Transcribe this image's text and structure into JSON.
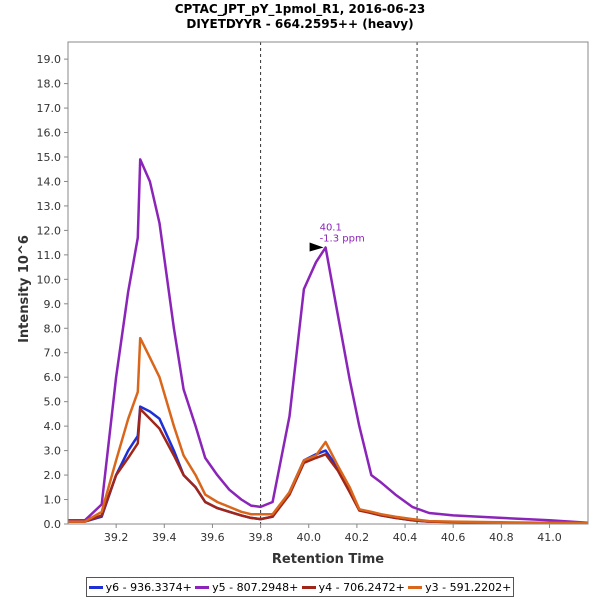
{
  "chart_data": {
    "type": "line",
    "title": "CPTAC_JPT_pY_1pmol_R1, 2016-06-23",
    "subtitle": "DIYETDYYR - 664.2595++ (heavy)",
    "xlabel": "Retention Time",
    "ylabel": "Intensity 10^6",
    "xlim": [
      39.0,
      41.16
    ],
    "ylim": [
      0,
      19.7
    ],
    "x_ticks": [
      "39.2",
      "39.4",
      "39.6",
      "39.8",
      "40.0",
      "40.2",
      "40.4",
      "40.6",
      "40.8",
      "41.0"
    ],
    "y_ticks": [
      "0.0",
      "1.0",
      "2.0",
      "3.0",
      "4.0",
      "5.0",
      "6.0",
      "7.0",
      "8.0",
      "9.0",
      "10.0",
      "11.0",
      "12.0",
      "13.0",
      "14.0",
      "15.0",
      "16.0",
      "17.0",
      "18.0",
      "19.0"
    ],
    "vlines": [
      39.8,
      40.45
    ],
    "annotation": {
      "x": 40.07,
      "y": 11.3,
      "rt_label": "40.1",
      "ppm_label": "-1.3 ppm",
      "color": "#8b24b8"
    },
    "series": [
      {
        "name": "y6 - 936.3374+",
        "color": "#1f2fd6",
        "x": [
          39.0,
          39.07,
          39.14,
          39.2,
          39.25,
          39.29,
          39.3,
          39.34,
          39.38,
          39.44,
          39.48,
          39.53,
          39.57,
          39.62,
          39.67,
          39.72,
          39.76,
          39.8,
          39.85,
          39.92,
          39.98,
          40.03,
          40.07,
          40.12,
          40.17,
          40.21,
          40.26,
          40.3,
          40.36,
          40.43,
          40.5,
          40.6,
          40.8,
          41.0,
          41.16
        ],
        "y": [
          0.1,
          0.1,
          0.3,
          2.0,
          3.0,
          3.6,
          4.8,
          4.6,
          4.3,
          3.0,
          2.0,
          1.5,
          0.9,
          0.65,
          0.5,
          0.35,
          0.25,
          0.2,
          0.3,
          1.3,
          2.6,
          2.85,
          3.0,
          2.3,
          1.4,
          0.6,
          0.45,
          0.35,
          0.25,
          0.15,
          0.1,
          0.08,
          0.05,
          0.04,
          0.03
        ]
      },
      {
        "name": "y5 - 807.2948+",
        "color": "#8b24b8",
        "x": [
          39.0,
          39.07,
          39.14,
          39.2,
          39.25,
          39.29,
          39.3,
          39.34,
          39.38,
          39.44,
          39.48,
          39.53,
          39.57,
          39.62,
          39.67,
          39.72,
          39.76,
          39.8,
          39.85,
          39.92,
          39.98,
          40.03,
          40.07,
          40.12,
          40.17,
          40.21,
          40.26,
          40.3,
          40.36,
          40.43,
          40.5,
          40.6,
          40.8,
          41.0,
          41.16
        ],
        "y": [
          0.15,
          0.15,
          0.8,
          6.0,
          9.5,
          11.7,
          14.9,
          14.0,
          12.3,
          8.0,
          5.5,
          4.0,
          2.7,
          2.0,
          1.4,
          1.0,
          0.75,
          0.7,
          0.9,
          4.4,
          9.6,
          10.7,
          11.3,
          8.6,
          5.9,
          4.0,
          2.0,
          1.7,
          1.2,
          0.7,
          0.45,
          0.35,
          0.25,
          0.15,
          0.05
        ]
      },
      {
        "name": "y4 - 706.2472+",
        "color": "#a0261a",
        "x": [
          39.0,
          39.07,
          39.14,
          39.2,
          39.25,
          39.29,
          39.3,
          39.34,
          39.38,
          39.44,
          39.48,
          39.53,
          39.57,
          39.62,
          39.67,
          39.72,
          39.76,
          39.8,
          39.85,
          39.92,
          39.98,
          40.03,
          40.07,
          40.12,
          40.17,
          40.21,
          40.26,
          40.3,
          40.36,
          40.43,
          40.5,
          40.6,
          40.8,
          41.0,
          41.16
        ],
        "y": [
          0.1,
          0.1,
          0.35,
          2.0,
          2.7,
          3.3,
          4.7,
          4.3,
          3.9,
          2.8,
          2.0,
          1.5,
          0.9,
          0.65,
          0.5,
          0.35,
          0.25,
          0.2,
          0.3,
          1.2,
          2.5,
          2.7,
          2.85,
          2.2,
          1.3,
          0.55,
          0.45,
          0.35,
          0.25,
          0.15,
          0.1,
          0.08,
          0.05,
          0.04,
          0.03
        ]
      },
      {
        "name": "y3 - 591.2202+",
        "color": "#d9661a",
        "x": [
          39.0,
          39.07,
          39.14,
          39.2,
          39.25,
          39.29,
          39.3,
          39.34,
          39.38,
          39.44,
          39.48,
          39.53,
          39.57,
          39.62,
          39.67,
          39.72,
          39.76,
          39.8,
          39.85,
          39.92,
          39.98,
          40.03,
          40.07,
          40.12,
          40.17,
          40.21,
          40.26,
          40.3,
          40.36,
          40.43,
          40.5,
          40.6,
          40.8,
          41.0,
          41.16
        ],
        "y": [
          0.1,
          0.1,
          0.5,
          2.6,
          4.3,
          5.4,
          7.6,
          6.8,
          6.0,
          4.0,
          2.8,
          2.0,
          1.2,
          0.9,
          0.7,
          0.5,
          0.4,
          0.4,
          0.4,
          1.3,
          2.6,
          2.8,
          3.35,
          2.4,
          1.5,
          0.6,
          0.5,
          0.4,
          0.3,
          0.2,
          0.12,
          0.1,
          0.07,
          0.05,
          0.04
        ]
      }
    ]
  }
}
